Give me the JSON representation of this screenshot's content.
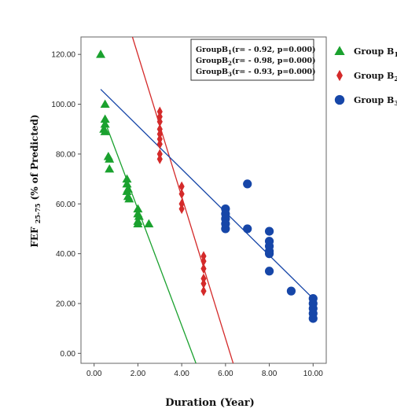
{
  "chart_data": {
    "type": "scatter",
    "xlabel": "Duration (Year)",
    "ylabel": "FEF 25-75(% of Predicted)",
    "ylabel_main": "FEF",
    "ylabel_sub": "25-75",
    "ylabel_rest": "(% of Predicted)",
    "xlim": [
      -0.6,
      10.6
    ],
    "ylim": [
      -4,
      127
    ],
    "x_ticks": [
      0,
      2,
      4,
      6,
      8,
      10
    ],
    "x_tick_labels": [
      "0.00",
      "2.00",
      "4.00",
      "6.00",
      "8.00",
      "10.00"
    ],
    "y_ticks": [
      0,
      20,
      40,
      60,
      80,
      100,
      120
    ],
    "y_tick_labels": [
      "0.00",
      "20.00",
      "40.00",
      "60.00",
      "80.00",
      "100.00",
      "120.00"
    ],
    "annotation": {
      "lines": [
        {
          "prefix": "Group",
          "group": "B",
          "sub": "1",
          "rest": "(r= - 0.92, p=0.000)"
        },
        {
          "prefix": "Group",
          "group": "B",
          "sub": "2",
          "rest": "(r= - 0.98, p=0.000)"
        },
        {
          "prefix": "Group",
          "group": "B",
          "sub": "3",
          "rest": "(r= - 0.93, p=0.000)"
        }
      ]
    },
    "legend_position": "right",
    "series": [
      {
        "name": "Group B1",
        "legend_main": "Group B",
        "legend_sub": "1",
        "marker": "triangle",
        "color": "#1aa12e",
        "points": [
          [
            0.3,
            120
          ],
          [
            0.5,
            100
          ],
          [
            0.5,
            94
          ],
          [
            0.5,
            92
          ],
          [
            0.45,
            90
          ],
          [
            0.5,
            89
          ],
          [
            0.65,
            79
          ],
          [
            0.7,
            78
          ],
          [
            0.7,
            74
          ],
          [
            1.5,
            70
          ],
          [
            1.5,
            68
          ],
          [
            1.55,
            66
          ],
          [
            1.5,
            65
          ],
          [
            1.55,
            63
          ],
          [
            1.6,
            62
          ],
          [
            2.0,
            58
          ],
          [
            2.0,
            56
          ],
          [
            2.05,
            55
          ],
          [
            2.0,
            53
          ],
          [
            2.0,
            52
          ],
          [
            2.5,
            52
          ]
        ],
        "fit": [
          [
            0.6,
            90.5
          ],
          [
            4.65,
            -4
          ]
        ]
      },
      {
        "name": "Group B2",
        "legend_main": "Group B",
        "legend_sub": "2",
        "marker": "diamond",
        "color": "#d42a2a",
        "points": [
          [
            3.0,
            97
          ],
          [
            3.0,
            95
          ],
          [
            3.0,
            93
          ],
          [
            3.0,
            90
          ],
          [
            3.0,
            88
          ],
          [
            3.0,
            86
          ],
          [
            3.0,
            84
          ],
          [
            3.0,
            80
          ],
          [
            3.0,
            78
          ],
          [
            4.0,
            67
          ],
          [
            4.0,
            64
          ],
          [
            4.0,
            60
          ],
          [
            4.0,
            58
          ],
          [
            5.0,
            39
          ],
          [
            5.0,
            37
          ],
          [
            5.0,
            34
          ],
          [
            5.0,
            30
          ],
          [
            5.0,
            28
          ],
          [
            5.0,
            25
          ]
        ],
        "fit": [
          [
            1.75,
            127
          ],
          [
            6.35,
            -4
          ]
        ]
      },
      {
        "name": "Group B3",
        "legend_main": "Group B",
        "legend_sub": "3",
        "marker": "circle",
        "color": "#1646a8",
        "points": [
          [
            6.0,
            58
          ],
          [
            6.0,
            56
          ],
          [
            6.0,
            54
          ],
          [
            6.0,
            52
          ],
          [
            6.0,
            50
          ],
          [
            7.0,
            68
          ],
          [
            7.0,
            50
          ],
          [
            8.0,
            49
          ],
          [
            8.0,
            45
          ],
          [
            8.0,
            43
          ],
          [
            8.0,
            41
          ],
          [
            8.0,
            40
          ],
          [
            8.0,
            33
          ],
          [
            9.0,
            25
          ],
          [
            10.0,
            22
          ],
          [
            10.0,
            20
          ],
          [
            10.0,
            18
          ],
          [
            10.0,
            16
          ],
          [
            10.0,
            14
          ]
        ],
        "fit": [
          [
            0.3,
            106
          ],
          [
            10.0,
            22
          ]
        ]
      }
    ]
  }
}
